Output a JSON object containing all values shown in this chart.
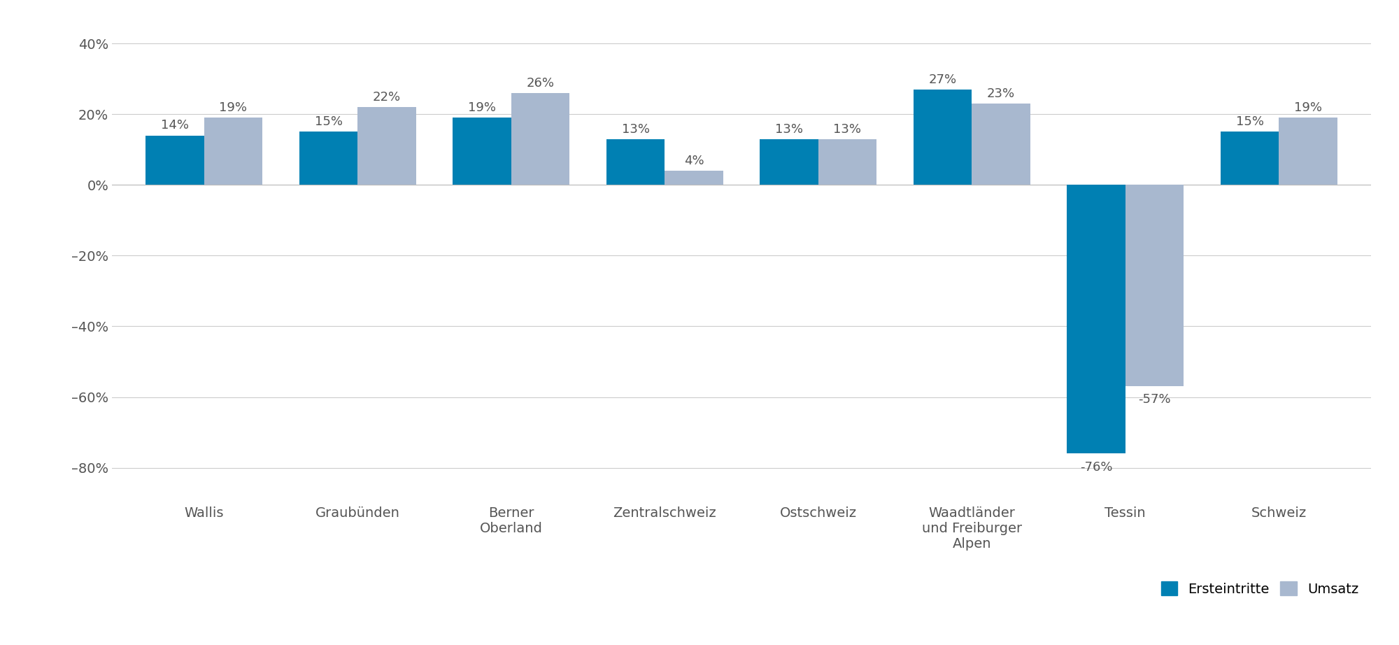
{
  "categories": [
    "Wallis",
    "Graubünden",
    "Berner\nOberland",
    "Zentralschweiz",
    "Ostschweiz",
    "Waadtländer\nund Freiburger\nAlpen",
    "Tessin",
    "Schweiz"
  ],
  "ersteintritte": [
    14,
    15,
    19,
    13,
    13,
    27,
    -76,
    15
  ],
  "umsatz": [
    19,
    22,
    26,
    4,
    13,
    23,
    -57,
    19
  ],
  "ersteintritte_labels": [
    "14%",
    "15%",
    "19%",
    "13%",
    "13%",
    "27%",
    "-76%",
    "15%"
  ],
  "umsatz_labels": [
    "19%",
    "22%",
    "26%",
    "4%",
    "13%",
    "23%",
    "-57%",
    "19%"
  ],
  "bar_color_ersteintritte": "#0080b3",
  "bar_color_umsatz": "#a8b8cf",
  "ylim": [
    -90,
    45
  ],
  "yticks": [
    -80,
    -60,
    -40,
    -20,
    0,
    20,
    40
  ],
  "ytick_labels": [
    "–80%",
    "–60%",
    "–40%",
    "–20%",
    "0%",
    "20%",
    "40%"
  ],
  "legend_ersteintritte": "Ersteintritte",
  "legend_umsatz": "Umsatz",
  "background_color": "#ffffff",
  "grid_color": "#cccccc",
  "label_fontsize": 13,
  "tick_fontsize": 14,
  "legend_fontsize": 14,
  "bar_width": 0.38
}
